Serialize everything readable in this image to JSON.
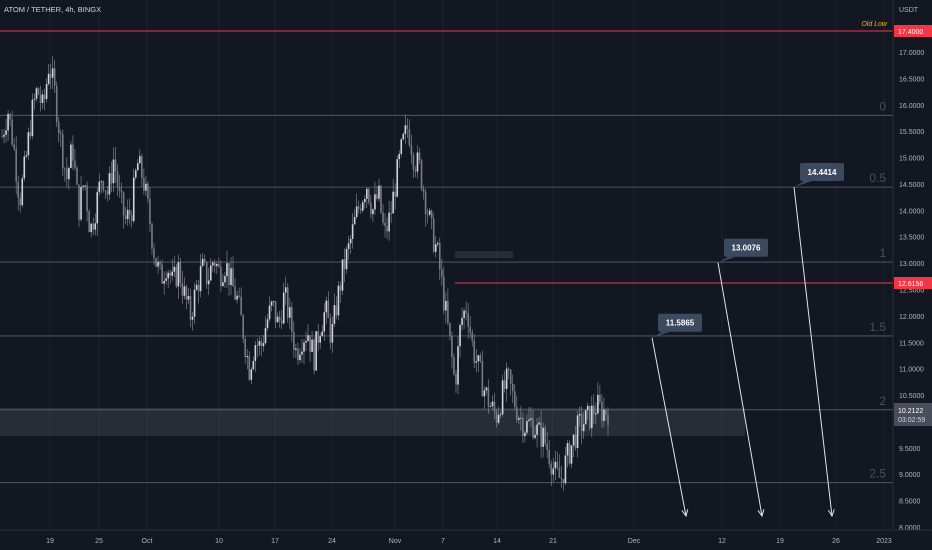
{
  "header": {
    "symbol": "ATOM / TETHER, 4h, BINGX"
  },
  "axis": {
    "currency": "USDT",
    "price_ticks": [
      "17.0000",
      "16.5000",
      "16.0000",
      "15.5000",
      "15.0000",
      "14.5000",
      "14.0000",
      "13.5000",
      "13.0000",
      "12.5000",
      "12.0000",
      "11.5000",
      "11.0000",
      "10.5000",
      "10.0000",
      "9.5000",
      "9.0000",
      "8.5000",
      "8.0000"
    ],
    "price_tick_values": [
      17,
      16.5,
      16,
      15.5,
      15,
      14.5,
      14,
      13.5,
      13,
      12.5,
      12,
      11.5,
      11,
      10.5,
      10,
      9.5,
      9,
      8.5,
      8
    ],
    "time_ticks": [
      "19",
      "25",
      "Oct",
      "10",
      "17",
      "24",
      "Nov",
      "7",
      "14",
      "21",
      "Dec",
      "12",
      "19",
      "26",
      "2023"
    ],
    "time_tick_x": [
      50,
      99,
      147,
      219,
      275,
      332,
      395,
      443,
      497,
      553,
      634,
      722,
      780,
      836,
      884
    ]
  },
  "levels": {
    "old_low": {
      "label": "Old Low",
      "price_label": "17.4000",
      "value": 17.4,
      "color": "#f23645"
    },
    "red_level": {
      "price_label": "12.6156",
      "value": 12.6156,
      "color": "#f23645"
    },
    "current": {
      "price_label": "10.2122",
      "countdown": "03:02:59",
      "value": 10.2122
    }
  },
  "fib_levels": [
    {
      "label": "0",
      "value": 15.8
    },
    {
      "label": "0.5",
      "value": 14.44
    },
    {
      "label": "1",
      "value": 13.02
    },
    {
      "label": "1.5",
      "value": 11.62
    },
    {
      "label": "2",
      "value": 10.22
    },
    {
      "label": "2.5",
      "value": 8.84
    }
  ],
  "targets": [
    {
      "label": "11.5865",
      "value": 11.5865
    },
    {
      "label": "13.0076",
      "value": 13.0076
    },
    {
      "label": "14.4414",
      "value": 14.4414
    }
  ],
  "chart_data": {
    "type": "candlestick",
    "ylim": [
      8.0,
      17.6
    ],
    "close_path": [
      15.4,
      15.9,
      15.2,
      14.2,
      14.9,
      15.8,
      16.3,
      15.9,
      16.8,
      16.2,
      15.3,
      14.6,
      15.2,
      14.0,
      14.6,
      13.6,
      14.1,
      14.7,
      14.3,
      15.0,
      14.2,
      13.8,
      14.0,
      14.9,
      14.6,
      13.9,
      13.1,
      12.7,
      13.0,
      12.6,
      12.9,
      12.4,
      12.0,
      12.5,
      12.9,
      12.7,
      13.1,
      12.8,
      13.0,
      12.6,
      12.3,
      11.7,
      11.0,
      11.5,
      11.4,
      11.9,
      12.2,
      11.8,
      12.4,
      11.9,
      11.3,
      11.6,
      11.7,
      11.2,
      11.8,
      12.1,
      11.6,
      12.3,
      12.9,
      13.3,
      13.8,
      14.2,
      14.5,
      14.0,
      14.3,
      13.5,
      13.9,
      14.6,
      15.2,
      15.6,
      15.0,
      14.8,
      14.2,
      13.6,
      13.2,
      12.4,
      11.6,
      10.7,
      11.9,
      12.2,
      11.4,
      11.0,
      10.6,
      10.3,
      10.1,
      10.5,
      10.8,
      10.4,
      10.1,
      9.9,
      10.0,
      9.8,
      9.7,
      9.4,
      9.0,
      8.9,
      9.3,
      9.6,
      9.9,
      10.0,
      10.1,
      10.3,
      10.2,
      10.2
    ]
  }
}
